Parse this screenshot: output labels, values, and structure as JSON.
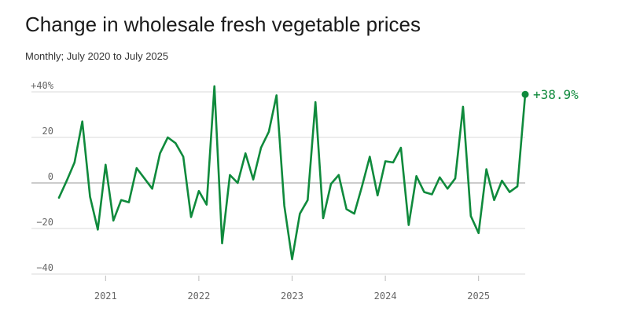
{
  "header": {
    "title": "Change in wholesale fresh vegetable prices",
    "subtitle": "Monthly; July 2020 to July 2025"
  },
  "colors": {
    "line": "#0f8a3c",
    "grid": "#d9d9d9",
    "zero_line": "#999999",
    "tick_text": "#666666"
  },
  "chart_data": {
    "type": "line",
    "title": "Change in wholesale fresh vegetable prices",
    "subtitle": "Monthly; July 2020 to July 2025",
    "x_start": "2020-07",
    "x_end": "2025-07",
    "x": [
      "2020-07",
      "2020-08",
      "2020-09",
      "2020-10",
      "2020-11",
      "2020-12",
      "2021-01",
      "2021-02",
      "2021-03",
      "2021-04",
      "2021-05",
      "2021-06",
      "2021-07",
      "2021-08",
      "2021-09",
      "2021-10",
      "2021-11",
      "2021-12",
      "2022-01",
      "2022-02",
      "2022-03",
      "2022-04",
      "2022-05",
      "2022-06",
      "2022-07",
      "2022-08",
      "2022-09",
      "2022-10",
      "2022-11",
      "2022-12",
      "2023-01",
      "2023-02",
      "2023-03",
      "2023-04",
      "2023-05",
      "2023-06",
      "2023-07",
      "2023-08",
      "2023-09",
      "2023-10",
      "2023-11",
      "2023-12",
      "2024-01",
      "2024-02",
      "2024-03",
      "2024-04",
      "2024-05",
      "2024-06",
      "2024-07",
      "2024-08",
      "2024-09",
      "2024-10",
      "2024-11",
      "2024-12",
      "2025-01",
      "2025-02",
      "2025-03",
      "2025-04",
      "2025-05",
      "2025-06",
      "2025-07"
    ],
    "values": [
      -6.5,
      1,
      9,
      27,
      -6,
      -20.5,
      8,
      -16.5,
      -7.5,
      -8.5,
      6.5,
      2,
      -2.5,
      13,
      20,
      17.5,
      11.5,
      -15,
      -3.5,
      -9.5,
      42.5,
      -26.5,
      3.5,
      0,
      13,
      1.5,
      15.5,
      22.5,
      38.5,
      -10,
      -33.5,
      -13.5,
      -7.5,
      35.5,
      -15.5,
      -0.5,
      3.5,
      -11.5,
      -13.5,
      -1.5,
      11.5,
      -5.5,
      9.5,
      9,
      15.5,
      -18.5,
      3,
      -4,
      -5,
      2.5,
      -2.5,
      2,
      33.5,
      -14.5,
      -22,
      6,
      -7.5,
      1,
      -4,
      -1.5,
      38.9
    ],
    "y_ticks": [
      40,
      20,
      0,
      -20,
      -40
    ],
    "y_tick_labels": [
      "+40%",
      "20",
      "0",
      "−20",
      "−40"
    ],
    "x_ticks": [
      "2021",
      "2022",
      "2023",
      "2024",
      "2025"
    ],
    "ylim": [
      -40,
      40
    ],
    "end_label": "+38.9%",
    "grid": true,
    "legend": "none"
  }
}
